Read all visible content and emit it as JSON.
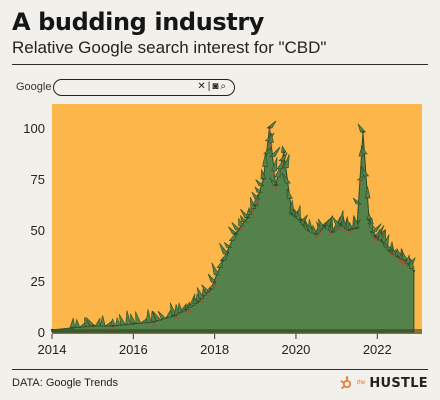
{
  "header": {
    "title": "A budding industry",
    "subtitle": "Relative Google search interest for \"CBD\""
  },
  "search_bar": {
    "brand": "Google",
    "clear_icon": "close-icon",
    "camera_icon": "camera-icon",
    "search_icon": "search-icon"
  },
  "footer": {
    "source": "DATA: Google Trends",
    "brand_prefix": "the",
    "brand_name": "HUSTLE"
  },
  "colors": {
    "plot_background": "#fcb64a",
    "plant": "#54824a",
    "plant_dark": "#2d4a28",
    "bud": "#b84a32",
    "accent": "#e8742a"
  },
  "chart_data": {
    "type": "area",
    "title": "A budding industry",
    "subtitle": "Relative Google search interest for \"CBD\"",
    "xlabel": "",
    "ylabel": "",
    "xlim": [
      2014,
      2023.1
    ],
    "ylim": [
      0,
      100
    ],
    "yticks": [
      0,
      25,
      50,
      75,
      100
    ],
    "xticks": [
      2014,
      2016,
      2018,
      2020,
      2022
    ],
    "x": [
      2014.0,
      2014.5,
      2015.0,
      2015.5,
      2016.0,
      2016.5,
      2017.0,
      2017.3,
      2017.6,
      2017.9,
      2018.2,
      2018.5,
      2018.8,
      2019.0,
      2019.2,
      2019.35,
      2019.5,
      2019.7,
      2019.9,
      2020.1,
      2020.3,
      2020.5,
      2020.7,
      2020.9,
      2021.1,
      2021.3,
      2021.5,
      2021.65,
      2021.8,
      2021.95,
      2022.1,
      2022.3,
      2022.5,
      2022.7,
      2022.9
    ],
    "values": [
      1,
      2,
      3,
      3,
      4,
      5,
      8,
      11,
      15,
      21,
      35,
      48,
      56,
      62,
      75,
      100,
      72,
      88,
      58,
      55,
      50,
      48,
      52,
      49,
      53,
      50,
      51,
      98,
      55,
      47,
      45,
      40,
      37,
      35,
      30
    ]
  }
}
